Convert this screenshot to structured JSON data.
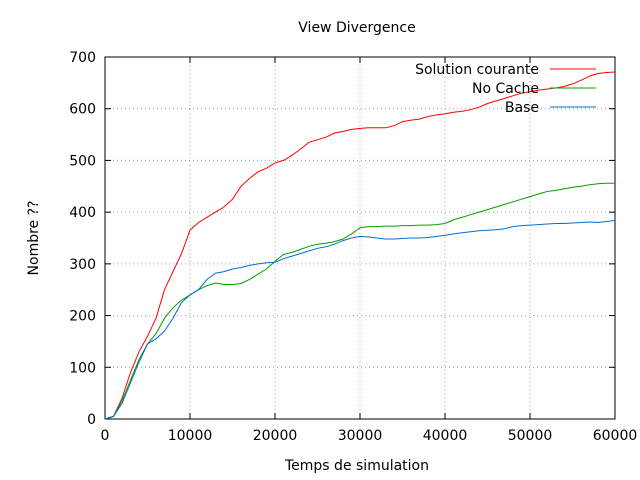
{
  "chart_data": {
    "type": "line",
    "title": "View Divergence",
    "xlabel": "Temps de simulation",
    "ylabel": "Nombre ??",
    "xlim": [
      0,
      60000
    ],
    "ylim": [
      0,
      700
    ],
    "xticks": [
      0,
      10000,
      20000,
      30000,
      40000,
      50000,
      60000
    ],
    "yticks": [
      0,
      100,
      200,
      300,
      400,
      500,
      600,
      700
    ],
    "grid": true,
    "legend_position": "top-right",
    "series": [
      {
        "name": "Solution courante",
        "color": "#ff0000",
        "points": [
          [
            0,
            0
          ],
          [
            1000,
            5
          ],
          [
            2000,
            40
          ],
          [
            3000,
            90
          ],
          [
            4000,
            130
          ],
          [
            5000,
            160
          ],
          [
            6000,
            195
          ],
          [
            7000,
            250
          ],
          [
            8000,
            285
          ],
          [
            9000,
            320
          ],
          [
            10000,
            365
          ],
          [
            11000,
            380
          ],
          [
            12000,
            390
          ],
          [
            13000,
            400
          ],
          [
            14000,
            410
          ],
          [
            15000,
            425
          ],
          [
            16000,
            450
          ],
          [
            17000,
            465
          ],
          [
            18000,
            478
          ],
          [
            19000,
            485
          ],
          [
            20000,
            495
          ],
          [
            21000,
            500
          ],
          [
            22000,
            510
          ],
          [
            23000,
            522
          ],
          [
            24000,
            535
          ],
          [
            25000,
            540
          ],
          [
            26000,
            545
          ],
          [
            27000,
            553
          ],
          [
            28000,
            556
          ],
          [
            29000,
            560
          ],
          [
            30000,
            562
          ],
          [
            31000,
            563
          ],
          [
            32000,
            563
          ],
          [
            33000,
            563
          ],
          [
            34000,
            567
          ],
          [
            35000,
            575
          ],
          [
            36000,
            578
          ],
          [
            37000,
            580
          ],
          [
            38000,
            585
          ],
          [
            39000,
            588
          ],
          [
            40000,
            590
          ],
          [
            41000,
            593
          ],
          [
            42000,
            595
          ],
          [
            43000,
            598
          ],
          [
            44000,
            603
          ],
          [
            45000,
            610
          ],
          [
            46000,
            615
          ],
          [
            47000,
            620
          ],
          [
            48000,
            625
          ],
          [
            49000,
            630
          ],
          [
            50000,
            633
          ],
          [
            51000,
            636
          ],
          [
            52000,
            638
          ],
          [
            53000,
            640
          ],
          [
            54000,
            643
          ],
          [
            55000,
            648
          ],
          [
            56000,
            655
          ],
          [
            57000,
            663
          ],
          [
            58000,
            668
          ],
          [
            59000,
            670
          ],
          [
            60000,
            671
          ]
        ]
      },
      {
        "name": "No Cache",
        "color": "#00a000",
        "points": [
          [
            0,
            0
          ],
          [
            1000,
            5
          ],
          [
            2000,
            35
          ],
          [
            3000,
            75
          ],
          [
            4000,
            115
          ],
          [
            5000,
            145
          ],
          [
            6000,
            165
          ],
          [
            7000,
            195
          ],
          [
            8000,
            215
          ],
          [
            9000,
            230
          ],
          [
            10000,
            240
          ],
          [
            11000,
            250
          ],
          [
            12000,
            258
          ],
          [
            13000,
            263
          ],
          [
            14000,
            260
          ],
          [
            15000,
            260
          ],
          [
            16000,
            262
          ],
          [
            17000,
            270
          ],
          [
            18000,
            280
          ],
          [
            19000,
            290
          ],
          [
            20000,
            305
          ],
          [
            21000,
            318
          ],
          [
            22000,
            322
          ],
          [
            23000,
            328
          ],
          [
            24000,
            334
          ],
          [
            25000,
            338
          ],
          [
            26000,
            340
          ],
          [
            27000,
            343
          ],
          [
            28000,
            348
          ],
          [
            29000,
            358
          ],
          [
            30000,
            370
          ],
          [
            31000,
            372
          ],
          [
            32000,
            372
          ],
          [
            33000,
            373
          ],
          [
            34000,
            373
          ],
          [
            35000,
            374
          ],
          [
            36000,
            374
          ],
          [
            37000,
            375
          ],
          [
            38000,
            375
          ],
          [
            39000,
            376
          ],
          [
            40000,
            378
          ],
          [
            41000,
            385
          ],
          [
            42000,
            390
          ],
          [
            43000,
            395
          ],
          [
            44000,
            400
          ],
          [
            45000,
            405
          ],
          [
            46000,
            410
          ],
          [
            47000,
            415
          ],
          [
            48000,
            420
          ],
          [
            49000,
            425
          ],
          [
            50000,
            430
          ],
          [
            51000,
            435
          ],
          [
            52000,
            440
          ],
          [
            53000,
            442
          ],
          [
            54000,
            445
          ],
          [
            55000,
            448
          ],
          [
            56000,
            450
          ],
          [
            57000,
            453
          ],
          [
            58000,
            455
          ],
          [
            59000,
            456
          ],
          [
            60000,
            456
          ]
        ]
      },
      {
        "name": "Base",
        "color": "#0070d0",
        "points": [
          [
            0,
            0
          ],
          [
            1000,
            5
          ],
          [
            2000,
            30
          ],
          [
            3000,
            70
          ],
          [
            4000,
            110
          ],
          [
            5000,
            145
          ],
          [
            6000,
            155
          ],
          [
            7000,
            170
          ],
          [
            8000,
            195
          ],
          [
            9000,
            225
          ],
          [
            10000,
            240
          ],
          [
            11000,
            250
          ],
          [
            12000,
            270
          ],
          [
            13000,
            282
          ],
          [
            14000,
            285
          ],
          [
            15000,
            290
          ],
          [
            16000,
            293
          ],
          [
            17000,
            297
          ],
          [
            18000,
            300
          ],
          [
            19000,
            302
          ],
          [
            20000,
            303
          ],
          [
            21000,
            310
          ],
          [
            22000,
            315
          ],
          [
            23000,
            320
          ],
          [
            24000,
            325
          ],
          [
            25000,
            330
          ],
          [
            26000,
            333
          ],
          [
            27000,
            338
          ],
          [
            28000,
            345
          ],
          [
            29000,
            350
          ],
          [
            30000,
            353
          ],
          [
            31000,
            352
          ],
          [
            32000,
            350
          ],
          [
            33000,
            348
          ],
          [
            34000,
            348
          ],
          [
            35000,
            349
          ],
          [
            36000,
            350
          ],
          [
            37000,
            350
          ],
          [
            38000,
            351
          ],
          [
            39000,
            353
          ],
          [
            40000,
            355
          ],
          [
            41000,
            358
          ],
          [
            42000,
            360
          ],
          [
            43000,
            362
          ],
          [
            44000,
            364
          ],
          [
            45000,
            365
          ],
          [
            46000,
            366
          ],
          [
            47000,
            368
          ],
          [
            48000,
            372
          ],
          [
            49000,
            374
          ],
          [
            50000,
            375
          ],
          [
            51000,
            376
          ],
          [
            52000,
            377
          ],
          [
            53000,
            378
          ],
          [
            54000,
            378
          ],
          [
            55000,
            379
          ],
          [
            56000,
            380
          ],
          [
            57000,
            381
          ],
          [
            58000,
            380
          ],
          [
            59000,
            382
          ],
          [
            60000,
            384
          ]
        ]
      }
    ]
  }
}
